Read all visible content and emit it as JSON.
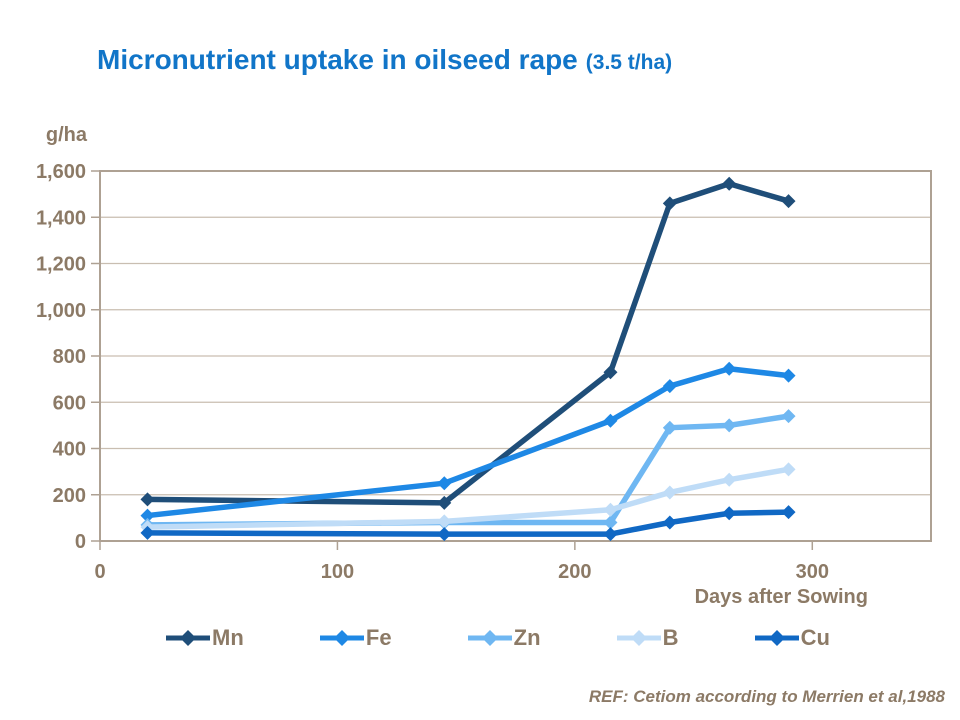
{
  "title": {
    "main": "Micronutrient uptake in oilseed rape",
    "suffix": "(3.5 t/ha)"
  },
  "footer": {
    "ref": "REF: Cetiom according to Merrien et al,1988"
  },
  "colors": {
    "title_text": "#1175C8",
    "axis_text": "#8C7A66",
    "gridline": "#C9BEB1",
    "plot_border": "#AEA193"
  },
  "chart_data": {
    "type": "line",
    "title": "Micronutrient uptake in oilseed rape (3.5 t/ha)",
    "xlabel": "Days after Sowing",
    "ylabel": "g/ha",
    "x": [
      20,
      145,
      215,
      240,
      265,
      290
    ],
    "xlim": [
      0,
      350
    ],
    "ylim": [
      0,
      1600
    ],
    "xticks": [
      0,
      100,
      200,
      300
    ],
    "xtick_labels": [
      "0",
      "100",
      "200",
      "300"
    ],
    "yticks": [
      0,
      200,
      400,
      600,
      800,
      1000,
      1200,
      1400,
      1600
    ],
    "ytick_labels": [
      "0",
      "200",
      "400",
      "600",
      "800",
      "1,000",
      "1,200",
      "1,400",
      "1,600"
    ],
    "grid": "horizontal",
    "legend_position": "bottom",
    "marker": "diamond",
    "series": [
      {
        "name": "Mn",
        "color": "#1F4E79",
        "values": [
          180,
          165,
          730,
          1460,
          1545,
          1470
        ]
      },
      {
        "name": "Fe",
        "color": "#1E88E5",
        "values": [
          110,
          250,
          520,
          670,
          745,
          715
        ]
      },
      {
        "name": "Zn",
        "color": "#6FB7F2",
        "values": [
          70,
          80,
          80,
          490,
          500,
          540
        ]
      },
      {
        "name": "B",
        "color": "#BFDCF7",
        "values": [
          60,
          85,
          135,
          210,
          265,
          310
        ]
      },
      {
        "name": "Cu",
        "color": "#1068C4",
        "values": [
          35,
          30,
          30,
          80,
          120,
          125
        ]
      }
    ]
  }
}
